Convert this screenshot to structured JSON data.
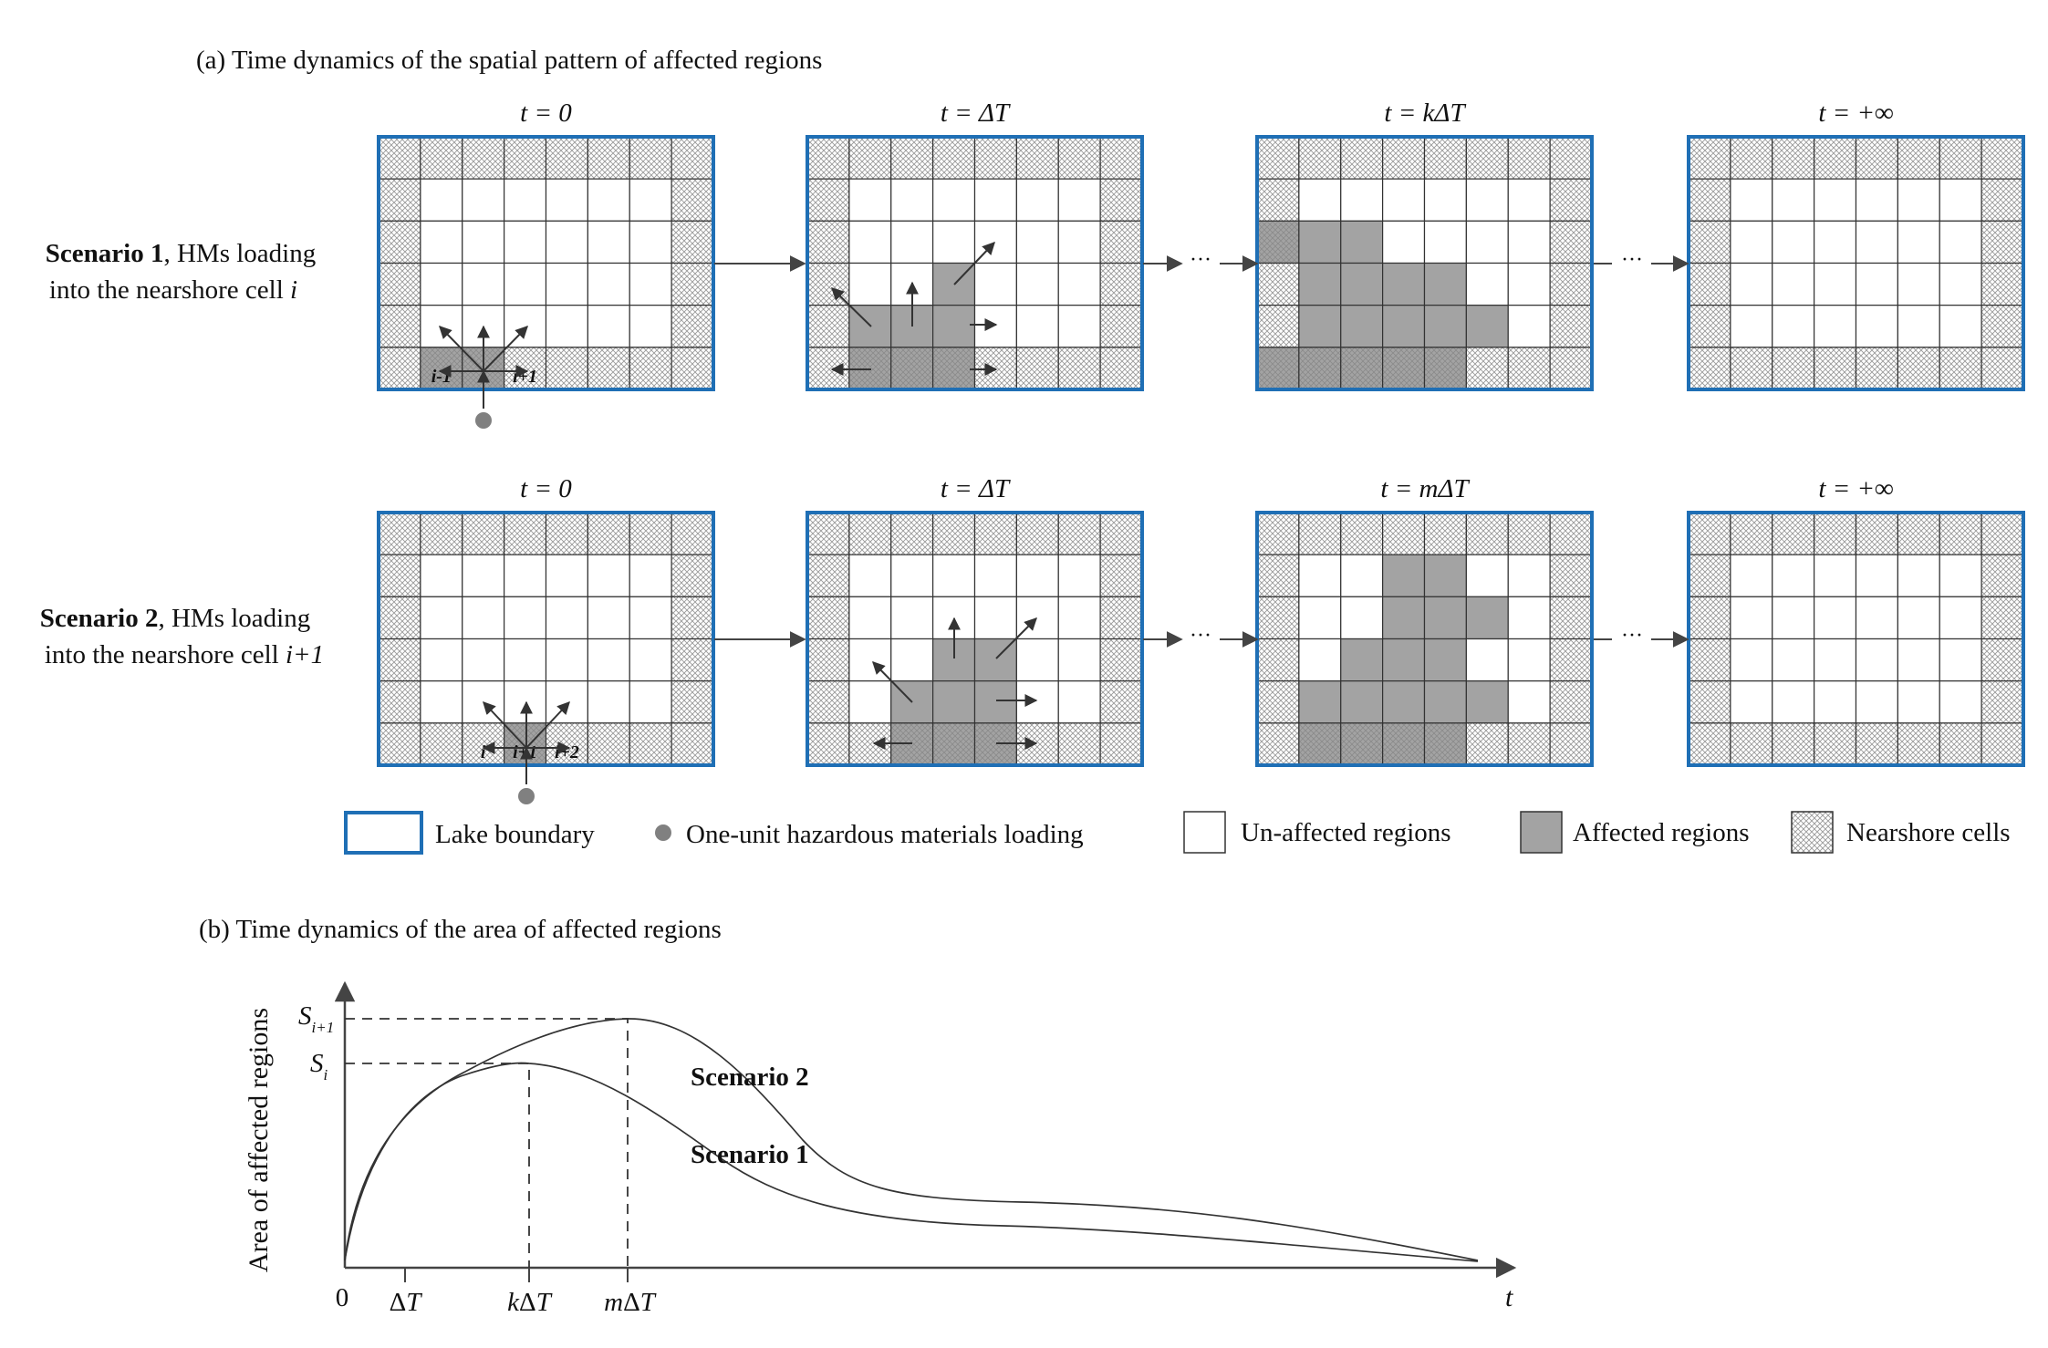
{
  "panel_a": {
    "title": "(a) Time dynamics of the spatial pattern of affected regions",
    "grid": {
      "cols": 8,
      "rows": 6
    },
    "scenarios": [
      {
        "label_bold": "Scenario 1",
        "label_rest": ", HMs loading",
        "label_line2": "into the nearshore cell ",
        "label_cell": "i",
        "frames": [
          {
            "time": "t = 0",
            "affected": [
              [
                1,
                5
              ],
              [
                2,
                5
              ]
            ],
            "cell_labels": [
              {
                "text": "i-1",
                "col": 1
              },
              {
                "text": "i",
                "col": 2
              },
              {
                "text": "i+1",
                "col": 3
              }
            ],
            "source_col": 2
          },
          {
            "time": "t = ΔT",
            "affected": [
              [
                1,
                4
              ],
              [
                2,
                4
              ],
              [
                3,
                3
              ],
              [
                3,
                4
              ],
              [
                1,
                5
              ],
              [
                2,
                5
              ],
              [
                3,
                5
              ]
            ]
          },
          {
            "time": "t = kΔT",
            "affected": [
              [
                0,
                2
              ],
              [
                1,
                2
              ],
              [
                2,
                2
              ],
              [
                1,
                3
              ],
              [
                2,
                3
              ],
              [
                3,
                3
              ],
              [
                4,
                3
              ],
              [
                1,
                4
              ],
              [
                2,
                4
              ],
              [
                3,
                4
              ],
              [
                4,
                4
              ],
              [
                5,
                4
              ],
              [
                0,
                5
              ],
              [
                1,
                5
              ],
              [
                2,
                5
              ],
              [
                3,
                5
              ],
              [
                4,
                5
              ]
            ]
          },
          {
            "time": "t = +∞",
            "affected": []
          }
        ]
      },
      {
        "label_bold": "Scenario 2",
        "label_rest": ", HMs loading",
        "label_line2": "into the nearshore cell ",
        "label_cell": "i+1",
        "frames": [
          {
            "time": "t = 0",
            "affected": [
              [
                3,
                5
              ]
            ],
            "cell_labels": [
              {
                "text": "i",
                "col": 2
              },
              {
                "text": "i+1",
                "col": 3
              },
              {
                "text": "i+2",
                "col": 4
              }
            ],
            "source_col": 3
          },
          {
            "time": "t = ΔT",
            "affected": [
              [
                3,
                3
              ],
              [
                4,
                3
              ],
              [
                2,
                4
              ],
              [
                3,
                4
              ],
              [
                4,
                4
              ],
              [
                2,
                5
              ],
              [
                3,
                5
              ],
              [
                4,
                5
              ]
            ]
          },
          {
            "time": "t = mΔT",
            "affected": [
              [
                3,
                1
              ],
              [
                4,
                1
              ],
              [
                3,
                2
              ],
              [
                4,
                2
              ],
              [
                5,
                2
              ],
              [
                2,
                3
              ],
              [
                3,
                3
              ],
              [
                4,
                3
              ],
              [
                1,
                4
              ],
              [
                2,
                4
              ],
              [
                3,
                4
              ],
              [
                4,
                4
              ],
              [
                5,
                4
              ],
              [
                1,
                5
              ],
              [
                2,
                5
              ],
              [
                3,
                5
              ],
              [
                4,
                5
              ]
            ]
          },
          {
            "time": "t = +∞",
            "affected": []
          }
        ]
      }
    ],
    "ellipsis": "···",
    "legend": [
      {
        "key": "lake",
        "label": "Lake boundary"
      },
      {
        "key": "dot",
        "label": "One-unit hazardous materials loading"
      },
      {
        "key": "unaffected",
        "label": "Un-affected regions"
      },
      {
        "key": "affected",
        "label": "Affected regions"
      },
      {
        "key": "nearshore",
        "label": "Nearshore cells"
      }
    ]
  },
  "panel_b": {
    "title": "(b) Time dynamics of the area of affected regions",
    "ylabel": "Area of affected regions",
    "xlabel": "t",
    "x_origin": "0",
    "x_ticks": [
      "ΔT",
      "kΔT",
      "mΔT"
    ],
    "y_ticks": [
      "S_i+1",
      "S_i"
    ],
    "series_labels": [
      "Scenario 2",
      "Scenario 1"
    ]
  },
  "colors": {
    "lake_boundary": "#1f6fb5",
    "affected": "#a3a3a3",
    "grid_line": "#333333",
    "hatch": "#9a9a9a",
    "dot": "#808080"
  }
}
